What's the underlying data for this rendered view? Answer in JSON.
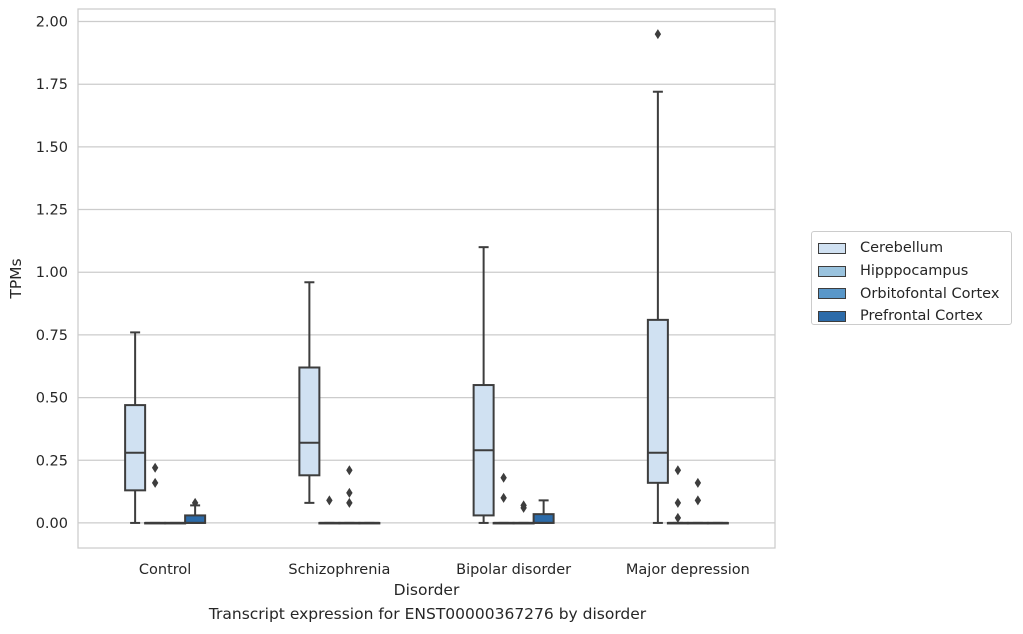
{
  "chart_data": {
    "type": "boxplot",
    "caption": "Transcript expression for ENST00000367276 by disorder",
    "xlabel": "Disorder",
    "ylabel": "TPMs",
    "ylim": [
      -0.1,
      2.05
    ],
    "yticks": [
      "0.00",
      "0.25",
      "0.50",
      "0.75",
      "1.00",
      "1.25",
      "1.50",
      "1.75",
      "2.00"
    ],
    "categories": [
      "Control",
      "Schizophrenia",
      "Bipolar disorder",
      "Major depression"
    ],
    "grid": "horizontal",
    "legend_position": "right",
    "series": [
      {
        "name": "Cerebellum",
        "color": "#d0e1f2",
        "boxes": [
          {
            "whislo": 0.0,
            "q1": 0.13,
            "med": 0.28,
            "q3": 0.47,
            "whishi": 0.76,
            "fliers": []
          },
          {
            "whislo": 0.08,
            "q1": 0.19,
            "med": 0.32,
            "q3": 0.62,
            "whishi": 0.96,
            "fliers": []
          },
          {
            "whislo": 0.0,
            "q1": 0.03,
            "med": 0.29,
            "q3": 0.55,
            "whishi": 1.1,
            "fliers": []
          },
          {
            "whislo": 0.0,
            "q1": 0.16,
            "med": 0.28,
            "q3": 0.81,
            "whishi": 1.72,
            "fliers": [
              1.95
            ]
          }
        ]
      },
      {
        "name": "Hipppocampus",
        "color": "#9ac3de",
        "boxes": [
          {
            "whislo": 0.0,
            "q1": 0.0,
            "med": 0.0,
            "q3": 0.0,
            "whishi": 0.0,
            "fliers": [
              0.16,
              0.22
            ]
          },
          {
            "whislo": 0.0,
            "q1": 0.0,
            "med": 0.0,
            "q3": 0.0,
            "whishi": 0.0,
            "fliers": [
              0.09
            ]
          },
          {
            "whislo": 0.0,
            "q1": 0.0,
            "med": 0.0,
            "q3": 0.0,
            "whishi": 0.0,
            "fliers": [
              0.1,
              0.18
            ]
          },
          {
            "whislo": 0.0,
            "q1": 0.0,
            "med": 0.0,
            "q3": 0.0,
            "whishi": 0.0,
            "fliers": [
              0.02,
              0.08,
              0.21
            ]
          }
        ]
      },
      {
        "name": "Orbitofontal Cortex",
        "color": "#5997c9",
        "boxes": [
          {
            "whislo": 0.0,
            "q1": 0.0,
            "med": 0.0,
            "q3": 0.0,
            "whishi": 0.0,
            "fliers": []
          },
          {
            "whislo": 0.0,
            "q1": 0.0,
            "med": 0.0,
            "q3": 0.0,
            "whishi": 0.0,
            "fliers": [
              0.08,
              0.12,
              0.21
            ]
          },
          {
            "whislo": 0.0,
            "q1": 0.0,
            "med": 0.0,
            "q3": 0.0,
            "whishi": 0.0,
            "fliers": [
              0.06,
              0.07
            ]
          },
          {
            "whislo": 0.0,
            "q1": 0.0,
            "med": 0.0,
            "q3": 0.0,
            "whishi": 0.0,
            "fliers": [
              0.09,
              0.16
            ]
          }
        ]
      },
      {
        "name": "Prefrontal Cortex",
        "color": "#2c6ba9",
        "boxes": [
          {
            "whislo": 0.0,
            "q1": 0.0,
            "med": 0.0,
            "q3": 0.03,
            "whishi": 0.07,
            "fliers": [
              0.08
            ]
          },
          {
            "whislo": 0.0,
            "q1": 0.0,
            "med": 0.0,
            "q3": 0.0,
            "whishi": 0.0,
            "fliers": []
          },
          {
            "whislo": 0.0,
            "q1": 0.0,
            "med": 0.0,
            "q3": 0.035,
            "whishi": 0.09,
            "fliers": []
          },
          {
            "whislo": 0.0,
            "q1": 0.0,
            "med": 0.0,
            "q3": 0.0,
            "whishi": 0.0,
            "fliers": []
          }
        ]
      }
    ]
  }
}
